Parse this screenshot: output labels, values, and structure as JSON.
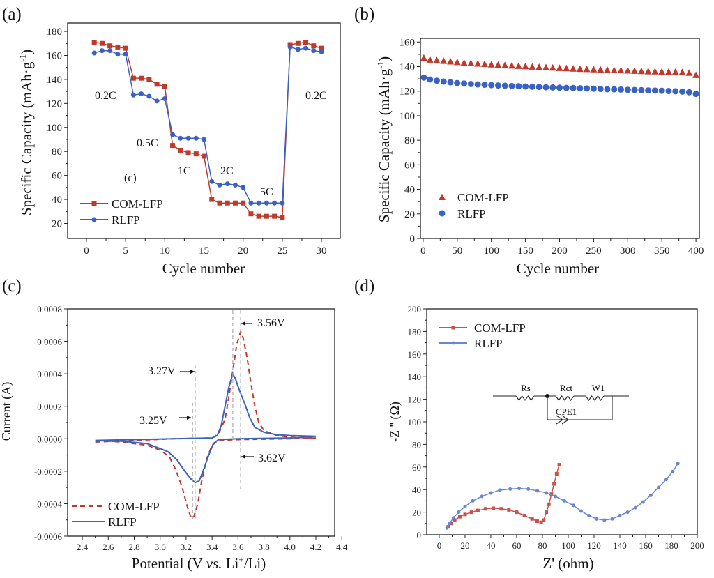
{
  "colors": {
    "com_lfp": "#c0392b",
    "rlfp": "#3a62c4",
    "com_lfp_eis": "#c9534a",
    "rlfp_eis": "#6a86d0",
    "guide": "#aaaaaa"
  },
  "chart_data": [
    {
      "panel": "(a)",
      "type": "line",
      "xlabel": "Cycle number",
      "ylabel": {
        "main": "Specific Capacity (mAh·g",
        "sup": "-1",
        "end": ")"
      },
      "xlim": [
        -2.4,
        32.4
      ],
      "ylim": [
        7.5,
        187
      ],
      "xticks": [
        0,
        5,
        10,
        15,
        20,
        25,
        30
      ],
      "yticks": [
        20,
        40,
        60,
        80,
        100,
        120,
        140,
        160,
        180
      ],
      "legend_position": "bottom-left",
      "annotations": [
        "0.2C",
        "0.5C",
        "1C",
        "2C",
        "5C",
        "0.2C",
        "(c)"
      ],
      "x": [
        1,
        2,
        3,
        4,
        5,
        6,
        7,
        8,
        9,
        10,
        11,
        12,
        13,
        14,
        15,
        16,
        17,
        18,
        19,
        20,
        21,
        22,
        23,
        24,
        25,
        26,
        27,
        28,
        29,
        30
      ],
      "series": [
        {
          "name": "COM-LFP",
          "marker": "square",
          "values": [
            171,
            170,
            168,
            167,
            166,
            141,
            141,
            140,
            136,
            134,
            85,
            81,
            79,
            78,
            76,
            40,
            37,
            37,
            37,
            37,
            28,
            26,
            26,
            26,
            25,
            169,
            170,
            171,
            168,
            166
          ]
        },
        {
          "name": "RLFP",
          "marker": "circle",
          "values": [
            162,
            164,
            164,
            161,
            161,
            127,
            128,
            126,
            122,
            124,
            94,
            91,
            91,
            91,
            90,
            55,
            52,
            53,
            52,
            50,
            37,
            37,
            37,
            37,
            37,
            167,
            165,
            166,
            164,
            163
          ]
        }
      ]
    },
    {
      "panel": "(b)",
      "type": "scatter",
      "xlabel": "Cycle number",
      "ylabel": {
        "main": "Specific Capacity (mAh·g",
        "sup": "-1",
        "end": ")"
      },
      "xlim": [
        -4,
        405
      ],
      "ylim": [
        0,
        163
      ],
      "xticks": [
        0,
        50,
        100,
        150,
        200,
        250,
        300,
        350,
        400
      ],
      "yticks": [
        0,
        20,
        40,
        60,
        80,
        100,
        120,
        140,
        160
      ],
      "legend_position": "bottom-left",
      "x": [
        1,
        10,
        20,
        30,
        40,
        50,
        60,
        70,
        80,
        90,
        100,
        110,
        120,
        130,
        140,
        150,
        160,
        170,
        180,
        190,
        200,
        210,
        220,
        230,
        240,
        250,
        260,
        270,
        280,
        290,
        300,
        310,
        320,
        330,
        340,
        350,
        360,
        370,
        380,
        390,
        400
      ],
      "series": [
        {
          "name": "COM-LFP",
          "marker": "triangle",
          "values": [
            147,
            145.5,
            145,
            144.5,
            144,
            143.5,
            143,
            142.7,
            142.3,
            142,
            141.6,
            141.3,
            141,
            140.7,
            140.4,
            140.1,
            139.8,
            139.5,
            139.2,
            139,
            138.7,
            138.5,
            138.2,
            138,
            137.8,
            137.6,
            137.4,
            137.2,
            137,
            136.8,
            136.6,
            136.4,
            136.2,
            136,
            135.9,
            135.8,
            135.7,
            135.6,
            135.4,
            134.8,
            133
          ]
        },
        {
          "name": "RLFP",
          "marker": "circle",
          "values": [
            131,
            129.5,
            128.5,
            127.8,
            127.2,
            126.6,
            126.2,
            125.8,
            125.5,
            125.2,
            124.9,
            124.6,
            124.4,
            124.2,
            124,
            123.8,
            123.6,
            123.4,
            123.2,
            123,
            122.8,
            122.6,
            122.5,
            122.3,
            122.2,
            122,
            121.8,
            121.6,
            121.5,
            121.3,
            121.1,
            121,
            120.8,
            120.6,
            120.5,
            120.3,
            120.1,
            119.9,
            119.6,
            119.1,
            117.8
          ]
        }
      ]
    },
    {
      "panel": "(c)",
      "type": "line",
      "xlabel": {
        "pre": "Potential (V ",
        "ital": "vs.",
        "mid": " Li",
        "sup": "+",
        "end": "/Li)"
      },
      "ylabel": "Current (A)",
      "xlim": [
        2.287,
        4.345
      ],
      "ylim": [
        -0.0006,
        0.0008
      ],
      "xticks": [
        2.4,
        2.6,
        2.8,
        3.0,
        3.2,
        3.4,
        3.6,
        3.8,
        4.0,
        4.2,
        4.4
      ],
      "yticks": [
        -0.0006,
        -0.0004,
        -0.0002,
        0.0,
        0.0002,
        0.0004,
        0.0006,
        0.0008
      ],
      "legend_position": "bottom-left",
      "annotations": [
        {
          "label": "3.56V",
          "x": 3.62
        },
        {
          "label": "3.27V",
          "x": 3.27
        },
        {
          "label": "3.25V",
          "x": 3.25
        },
        {
          "label": "3.62V",
          "x": 3.56
        }
      ],
      "series": [
        {
          "name": "COM-LFP",
          "style": "dashed",
          "points": [
            [
              2.5,
              -2e-05
            ],
            [
              2.8,
              -1e-05
            ],
            [
              3.1,
              0
            ],
            [
              3.4,
              5e-06
            ],
            [
              3.45,
              3e-05
            ],
            [
              3.5,
              0.00012
            ],
            [
              3.53,
              0.00026
            ],
            [
              3.56,
              0.00042
            ],
            [
              3.59,
              0.00058
            ],
            [
              3.62,
              0.00066
            ],
            [
              3.64,
              0.00062
            ],
            [
              3.67,
              0.0005
            ],
            [
              3.7,
              0.00034
            ],
            [
              3.73,
              0.0002
            ],
            [
              3.76,
              0.0001
            ],
            [
              3.8,
              5e-05
            ],
            [
              3.9,
              2e-05
            ],
            [
              4.0,
              1e-05
            ],
            [
              4.2,
              5e-06
            ],
            [
              4.0,
              0
            ],
            [
              3.6,
              -5e-06
            ],
            [
              3.45,
              -1e-05
            ],
            [
              3.4,
              -4e-05
            ],
            [
              3.36,
              -0.00012
            ],
            [
              3.32,
              -0.00026
            ],
            [
              3.29,
              -0.0004
            ],
            [
              3.26,
              -0.00048
            ],
            [
              3.24,
              -0.00049
            ],
            [
              3.21,
              -0.00042
            ],
            [
              3.17,
              -0.0003
            ],
            [
              3.12,
              -0.00019
            ],
            [
              3.07,
              -0.00011
            ],
            [
              3.0,
              -7e-05
            ],
            [
              2.9,
              -4e-05
            ],
            [
              2.7,
              -2e-05
            ],
            [
              2.5,
              -1e-05
            ]
          ]
        },
        {
          "name": "RLFP",
          "style": "solid",
          "points": [
            [
              2.5,
              -1e-05
            ],
            [
              2.8,
              -5e-06
            ],
            [
              3.1,
              0
            ],
            [
              3.4,
              5e-06
            ],
            [
              3.44,
              2e-05
            ],
            [
              3.47,
              8e-05
            ],
            [
              3.5,
              0.0002
            ],
            [
              3.53,
              0.00032
            ],
            [
              3.56,
              0.0004
            ],
            [
              3.58,
              0.00037
            ],
            [
              3.61,
              0.0003
            ],
            [
              3.65,
              0.00022
            ],
            [
              3.69,
              0.00013
            ],
            [
              3.73,
              7e-05
            ],
            [
              3.8,
              4e-05
            ],
            [
              3.9,
              2.5e-05
            ],
            [
              4.0,
              2e-05
            ],
            [
              4.2,
              1.5e-05
            ],
            [
              4.0,
              5e-06
            ],
            [
              3.6,
              0
            ],
            [
              3.45,
              -5e-06
            ],
            [
              3.41,
              -3e-05
            ],
            [
              3.37,
              -0.00011
            ],
            [
              3.33,
              -0.0002
            ],
            [
              3.3,
              -0.00026
            ],
            [
              3.27,
              -0.00027
            ],
            [
              3.24,
              -0.00025
            ],
            [
              3.19,
              -0.0002
            ],
            [
              3.13,
              -0.00013
            ],
            [
              3.06,
              -8e-05
            ],
            [
              3.0,
              -6e-05
            ],
            [
              2.9,
              -3e-05
            ],
            [
              2.7,
              -1.5e-05
            ],
            [
              2.5,
              -1e-05
            ]
          ]
        }
      ]
    },
    {
      "panel": "(d)",
      "type": "line",
      "xlabel": "Z' (ohm)",
      "ylabel": "-Z '' (Ω)",
      "xlim": [
        -9.7,
        200
      ],
      "ylim": [
        0,
        200
      ],
      "xticks": [
        0,
        20,
        40,
        60,
        80,
        100,
        120,
        140,
        160,
        180,
        200
      ],
      "yticks": [
        0,
        20,
        40,
        60,
        80,
        100,
        120,
        140,
        160,
        180,
        200
      ],
      "legend_position": "top-left",
      "circuit_labels": {
        "rs": "Rs",
        "rct": "Rct",
        "w1": "W1",
        "cpe": "CPE1"
      },
      "series": [
        {
          "name": "COM-LFP",
          "marker": "square",
          "points": [
            [
              7,
              7
            ],
            [
              9,
              10
            ],
            [
              12,
              13
            ],
            [
              16,
              16
            ],
            [
              20,
              18
            ],
            [
              25,
              20
            ],
            [
              30,
              21.5
            ],
            [
              36,
              23
            ],
            [
              42,
              23.5
            ],
            [
              48,
              23
            ],
            [
              54,
              22
            ],
            [
              60,
              20
            ],
            [
              66,
              17
            ],
            [
              72,
              14
            ],
            [
              76,
              12
            ],
            [
              79,
              11
            ],
            [
              81,
              13
            ],
            [
              83,
              20
            ],
            [
              85,
              27
            ],
            [
              87,
              36
            ],
            [
              89,
              45
            ],
            [
              91,
              54
            ],
            [
              93,
              62
            ]
          ]
        },
        {
          "name": "RLFP",
          "marker": "circle",
          "points": [
            [
              6,
              6
            ],
            [
              8,
              10
            ],
            [
              11,
              15
            ],
            [
              15,
              20
            ],
            [
              20,
              25
            ],
            [
              26,
              30
            ],
            [
              33,
              34
            ],
            [
              40,
              37
            ],
            [
              47,
              39.5
            ],
            [
              55,
              40.5
            ],
            [
              62,
              41
            ],
            [
              69,
              40.5
            ],
            [
              76,
              39
            ],
            [
              83,
              37
            ],
            [
              90,
              34
            ],
            [
              97,
              30
            ],
            [
              104,
              26
            ],
            [
              110,
              21
            ],
            [
              116,
              17
            ],
            [
              122,
              14
            ],
            [
              128,
              13
            ],
            [
              134,
              14
            ],
            [
              140,
              17
            ],
            [
              146,
              20
            ],
            [
              152,
              24
            ],
            [
              158,
              29
            ],
            [
              164,
              35
            ],
            [
              170,
              42
            ],
            [
              176,
              49
            ],
            [
              181,
              56
            ],
            [
              185,
              63
            ]
          ]
        }
      ]
    }
  ]
}
